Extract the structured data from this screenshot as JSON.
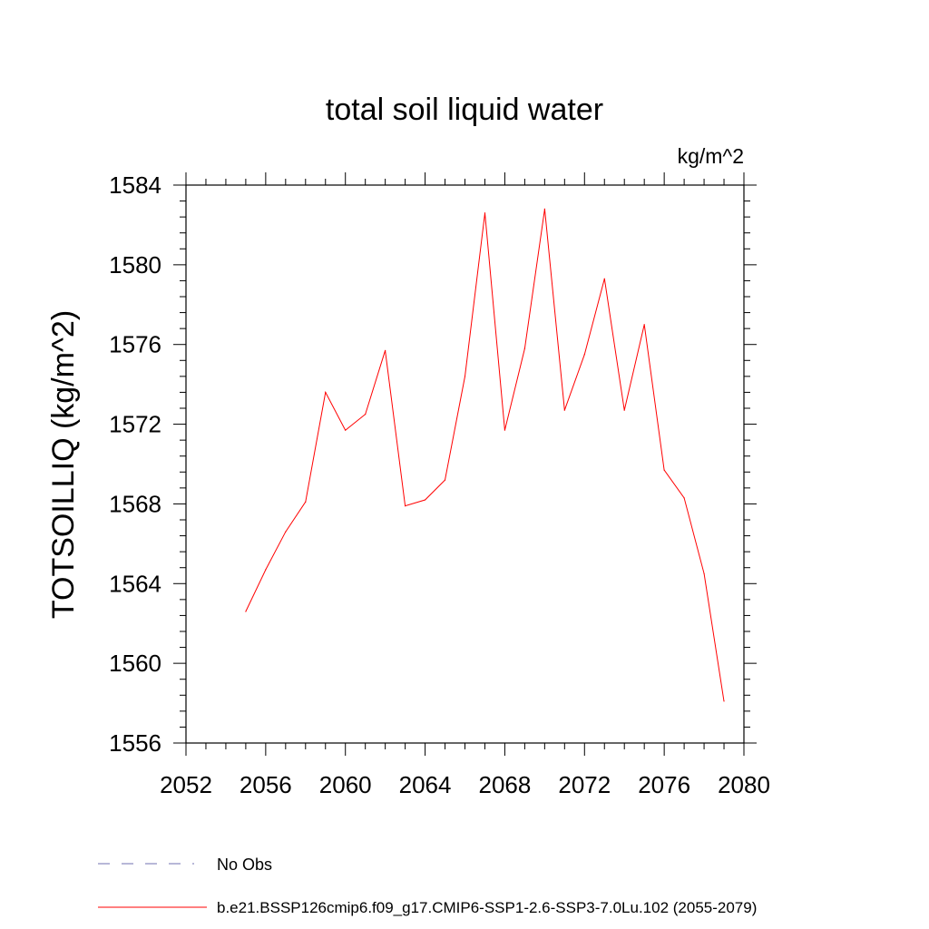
{
  "chart_data": {
    "type": "line",
    "title": "total soil liquid water",
    "units_label": "kg/m^2",
    "ylabel": "TOTSOILLIQ  (kg/m^2)",
    "xlabel": "",
    "xlim": [
      2052,
      2080
    ],
    "ylim": [
      1556,
      1584
    ],
    "xticks": [
      2052,
      2056,
      2060,
      2064,
      2068,
      2072,
      2076,
      2080
    ],
    "yticks": [
      1556,
      1560,
      1564,
      1568,
      1572,
      1576,
      1580,
      1584
    ],
    "grid": false,
    "series": [
      {
        "name": "b.e21.BSSP126cmip6.f09_g17.CMIP6-SSP1-2.6-SSP3-7.0Lu.102 (2055-2079)",
        "color": "#ff0000",
        "x": [
          2055,
          2056,
          2057,
          2058,
          2059,
          2060,
          2061,
          2062,
          2063,
          2064,
          2065,
          2066,
          2067,
          2068,
          2069,
          2070,
          2071,
          2072,
          2073,
          2074,
          2075,
          2076,
          2077,
          2078,
          2079
        ],
        "y": [
          1562.6,
          1564.7,
          1566.6,
          1568.1,
          1573.6,
          1571.7,
          1572.5,
          1575.7,
          1567.9,
          1568.2,
          1569.2,
          1574.4,
          1582.6,
          1571.7,
          1575.8,
          1582.8,
          1572.7,
          1575.5,
          1579.3,
          1572.7,
          1577.0,
          1569.7,
          1568.3,
          1564.5,
          1558.1
        ]
      }
    ],
    "legend": [
      {
        "label": "No Obs",
        "color": "#7070b0",
        "style": "dashed"
      },
      {
        "label": "b.e21.BSSP126cmip6.f09_g17.CMIP6-SSP1-2.6-SSP3-7.0Lu.102 (2055-2079)",
        "color": "#ff0000",
        "style": "solid"
      }
    ],
    "legend_position": "bottom"
  }
}
